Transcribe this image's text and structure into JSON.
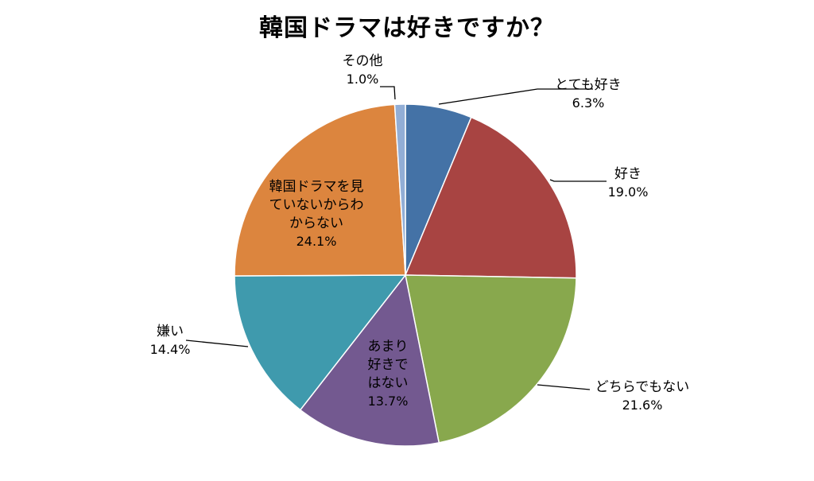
{
  "chart_data": {
    "type": "pie",
    "title": "韓国ドラマは好きですか？",
    "slices": [
      {
        "label": [
          "とても好き"
        ],
        "percent_text": "6.3%",
        "value": 6.3,
        "color": "#4472a6"
      },
      {
        "label": [
          "好き"
        ],
        "percent_text": "19.0%",
        "value": 19.0,
        "color": "#a84442"
      },
      {
        "label": [
          "どちらでもない"
        ],
        "percent_text": "21.6%",
        "value": 21.6,
        "color": "#88a84d"
      },
      {
        "label": [
          "あまり",
          "好きで",
          "はない"
        ],
        "percent_text": "13.7%",
        "value": 13.7,
        "color": "#735990"
      },
      {
        "label": [
          "嫌い"
        ],
        "percent_text": "14.4%",
        "value": 14.4,
        "color": "#3f9aad"
      },
      {
        "label": [
          "韓国ドラマを見",
          "ていないからわ",
          "からない"
        ],
        "percent_text": "24.1%",
        "value": 24.1,
        "color": "#dc853e"
      },
      {
        "label": [
          "その他"
        ],
        "percent_text": "1.0%",
        "value": 1.0,
        "color": "#92aed6"
      }
    ],
    "legend": "none"
  }
}
